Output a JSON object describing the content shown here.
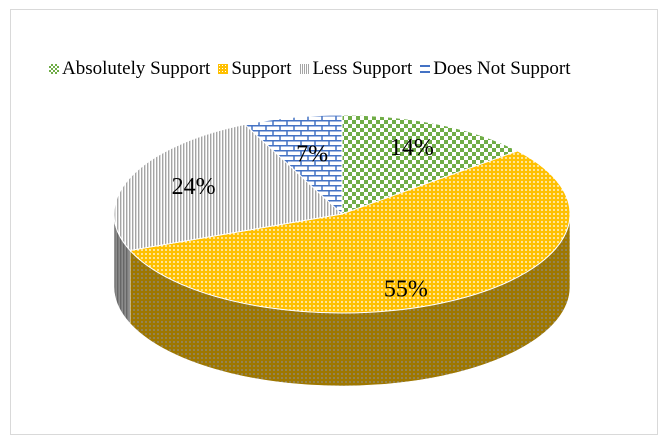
{
  "chart_data": {
    "type": "pie",
    "style": "3d",
    "legend_position": "top",
    "labels": [
      "Absolutely Support",
      "Support",
      "Less Support",
      "Does Not Support"
    ],
    "values": [
      14,
      55,
      24,
      7
    ],
    "data_labels": [
      "14%",
      "55%",
      "24%",
      "7%"
    ],
    "colors": [
      "#70ad47",
      "#ffc000",
      "#a5a5a5",
      "#4472c4"
    ],
    "patterns": [
      "checker",
      "dots",
      "vertical-lines",
      "brick"
    ]
  }
}
